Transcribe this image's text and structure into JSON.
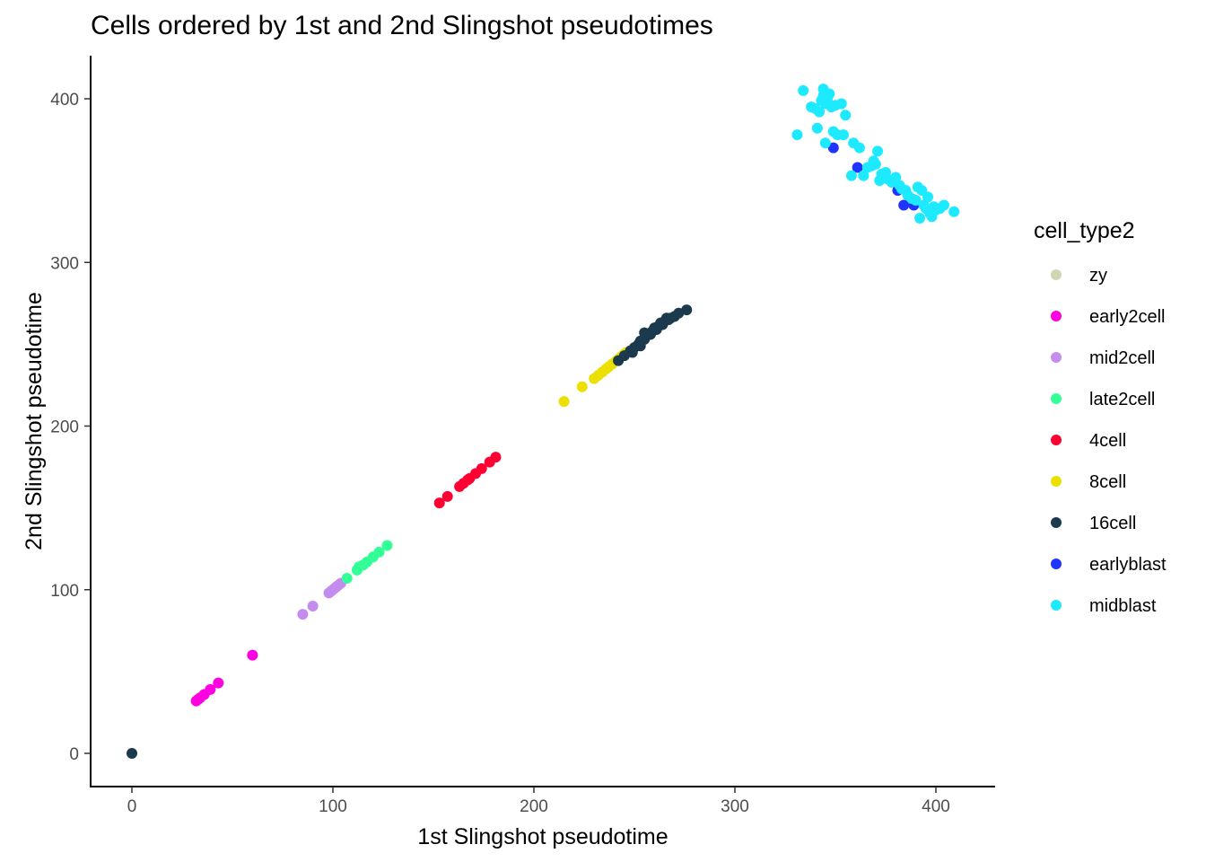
{
  "chart_data": {
    "type": "scatter",
    "title": "Cells ordered by 1st and 2nd Slingshot pseudotimes",
    "xlabel": "1st Slingshot pseudotime",
    "ylabel": "2nd Slingshot pseudotime",
    "xlim": [
      -20,
      430
    ],
    "ylim": [
      -20,
      425
    ],
    "xticks": [
      0,
      100,
      200,
      300,
      400
    ],
    "yticks": [
      0,
      100,
      200,
      300,
      400
    ],
    "grid": false,
    "legend": {
      "title": "cell_type2",
      "position": "right"
    },
    "series": [
      {
        "name": "zy",
        "color": "#cfd6b3",
        "points": []
      },
      {
        "name": "early2cell",
        "color": "#ff00e0",
        "points": [
          [
            32,
            32
          ],
          [
            33,
            33
          ],
          [
            34,
            34
          ],
          [
            36,
            36
          ],
          [
            39,
            39
          ],
          [
            43,
            43
          ],
          [
            60,
            60
          ]
        ]
      },
      {
        "name": "mid2cell",
        "color": "#c58cf0",
        "points": [
          [
            85,
            85
          ],
          [
            90,
            90
          ],
          [
            98,
            98
          ],
          [
            99,
            99
          ],
          [
            100,
            100
          ],
          [
            101,
            101
          ],
          [
            102,
            102
          ],
          [
            103,
            103
          ],
          [
            104,
            104
          ]
        ]
      },
      {
        "name": "late2cell",
        "color": "#33ff99",
        "points": [
          [
            107,
            107
          ],
          [
            112,
            112
          ],
          [
            113,
            114
          ],
          [
            115,
            115
          ],
          [
            117,
            117
          ],
          [
            120,
            120
          ],
          [
            123,
            123
          ],
          [
            127,
            127
          ]
        ]
      },
      {
        "name": "4cell",
        "color": "#ff0033",
        "points": [
          [
            153,
            153
          ],
          [
            157,
            157
          ],
          [
            163,
            163
          ],
          [
            165,
            165
          ],
          [
            167,
            167
          ],
          [
            168,
            168
          ],
          [
            171,
            171
          ],
          [
            174,
            174
          ],
          [
            178,
            178
          ],
          [
            181,
            181
          ]
        ]
      },
      {
        "name": "8cell",
        "color": "#ebe000",
        "points": [
          [
            215,
            215
          ],
          [
            224,
            224
          ],
          [
            230,
            229
          ],
          [
            232,
            231
          ],
          [
            234,
            233
          ],
          [
            236,
            235
          ],
          [
            237,
            236
          ],
          [
            239,
            238
          ],
          [
            241,
            240
          ],
          [
            243,
            242
          ],
          [
            244,
            243
          ],
          [
            245,
            244
          ],
          [
            246,
            245
          ]
        ]
      },
      {
        "name": "16cell",
        "color": "#1c3a4e",
        "points": [
          [
            0,
            0
          ],
          [
            242,
            240
          ],
          [
            245,
            243
          ],
          [
            248,
            246
          ],
          [
            250,
            248
          ],
          [
            252,
            250
          ],
          [
            253,
            252
          ],
          [
            255,
            253
          ],
          [
            256,
            255
          ],
          [
            258,
            256
          ],
          [
            259,
            258
          ],
          [
            261,
            259
          ],
          [
            262,
            261
          ],
          [
            264,
            262
          ],
          [
            265,
            264
          ],
          [
            267,
            265
          ],
          [
            268,
            266
          ],
          [
            270,
            267
          ],
          [
            272,
            269
          ],
          [
            276,
            271
          ],
          [
            255,
            257
          ],
          [
            260,
            260
          ],
          [
            263,
            263
          ],
          [
            266,
            266
          ],
          [
            249,
            245
          ],
          [
            253,
            249
          ]
        ]
      },
      {
        "name": "earlyblast",
        "color": "#1f35ff",
        "points": [
          [
            349,
            370
          ],
          [
            361,
            358
          ],
          [
            381,
            344
          ],
          [
            384,
            335
          ],
          [
            389,
            335
          ]
        ]
      },
      {
        "name": "midblast",
        "color": "#1eeaff",
        "points": [
          [
            331,
            378
          ],
          [
            334,
            405
          ],
          [
            338,
            395
          ],
          [
            340,
            394
          ],
          [
            342,
            392
          ],
          [
            343,
            399
          ],
          [
            344,
            406
          ],
          [
            344,
            402
          ],
          [
            345,
            397
          ],
          [
            346,
            400
          ],
          [
            347,
            403
          ],
          [
            348,
            395
          ],
          [
            350,
            396
          ],
          [
            351,
            378
          ],
          [
            353,
            397
          ],
          [
            354,
            378
          ],
          [
            355,
            390
          ],
          [
            341,
            382
          ],
          [
            345,
            373
          ],
          [
            349,
            380
          ],
          [
            358,
            353
          ],
          [
            359,
            373
          ],
          [
            362,
            370
          ],
          [
            364,
            353
          ],
          [
            366,
            358
          ],
          [
            368,
            359
          ],
          [
            369,
            362
          ],
          [
            370,
            360
          ],
          [
            371,
            368
          ],
          [
            372,
            350
          ],
          [
            373,
            354
          ],
          [
            375,
            355
          ],
          [
            376,
            351
          ],
          [
            378,
            349
          ],
          [
            380,
            352
          ],
          [
            382,
            347
          ],
          [
            383,
            345
          ],
          [
            385,
            344
          ],
          [
            386,
            341
          ],
          [
            388,
            339
          ],
          [
            390,
            338
          ],
          [
            391,
            346
          ],
          [
            392,
            327
          ],
          [
            393,
            344
          ],
          [
            394,
            335
          ],
          [
            395,
            333
          ],
          [
            396,
            340
          ],
          [
            397,
            330
          ],
          [
            398,
            328
          ],
          [
            399,
            334
          ],
          [
            400,
            332
          ],
          [
            402,
            333
          ],
          [
            404,
            335
          ],
          [
            409,
            331
          ]
        ]
      }
    ]
  }
}
